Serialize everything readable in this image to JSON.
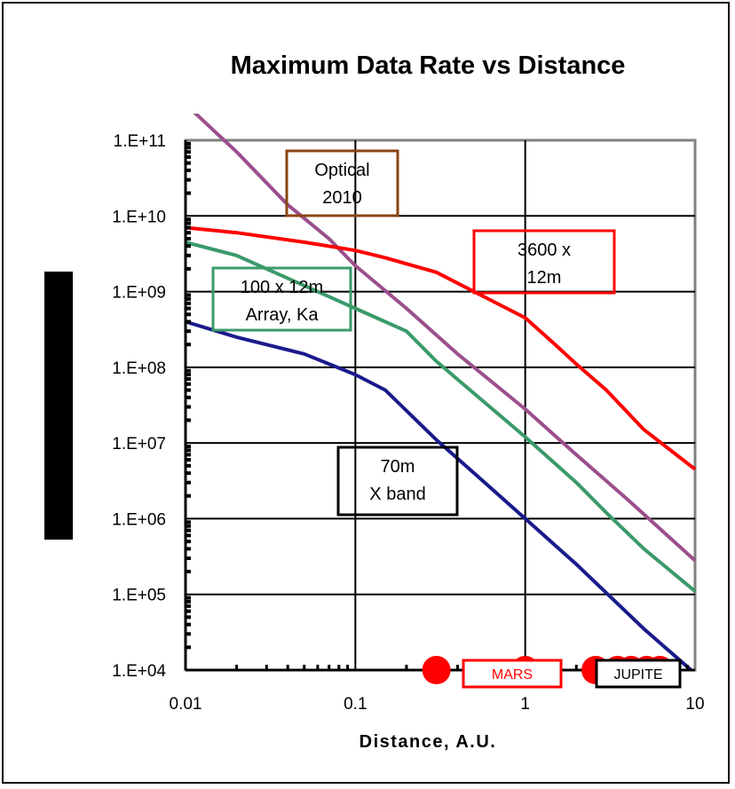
{
  "chart_data": {
    "type": "line",
    "title": "Maximum Data Rate vs Distance",
    "xlabel": "Distance, A.U.",
    "ylabel": "",
    "x_scale": "log",
    "y_scale": "log",
    "xlim": [
      0.01,
      10
    ],
    "ylim": [
      10000,
      100000000000
    ],
    "grid": true,
    "x_ticks": [
      "0.01",
      "0.1",
      "1",
      "10"
    ],
    "y_ticks": [
      "1.E+04",
      "1.E+05",
      "1.E+06",
      "1.E+07",
      "1.E+08",
      "1.E+09",
      "1.E+10",
      "1.E+11"
    ],
    "colors": {
      "optical": "#9b4f8c",
      "array_3600": "#ff0000",
      "array_100": "#3a9a6a",
      "dsn_70m": "#1a1a8c",
      "grid": "#000000",
      "plot_border": "#808080",
      "planet_marker": "#ff0000"
    },
    "series": [
      {
        "key": "optical",
        "x": [
          0.01,
          0.02,
          0.04,
          0.07,
          0.1,
          0.2,
          0.4,
          1,
          2,
          4,
          10
        ],
        "y": [
          300000000000,
          70000000000,
          14000000000,
          5000000000,
          2200000000,
          600000000,
          150000000,
          28000000,
          7000000,
          1800000,
          280000
        ]
      },
      {
        "key": "array_3600",
        "x": [
          0.01,
          0.02,
          0.05,
          0.1,
          0.15,
          0.3,
          0.5,
          1,
          1.5,
          2,
          3,
          5,
          10
        ],
        "y": [
          7000000000,
          6000000000,
          4500000000,
          3500000000,
          2800000000,
          1800000000,
          1000000000,
          450000000,
          200000000,
          110000000,
          50000000,
          15000000,
          4500000
        ]
      },
      {
        "key": "array_100",
        "x": [
          0.01,
          0.02,
          0.03,
          0.05,
          0.1,
          0.2,
          0.3,
          1,
          2,
          3,
          5,
          10
        ],
        "y": [
          4500000000,
          3000000000,
          2000000000,
          1200000000,
          600000000,
          300000000,
          120000000,
          12000000,
          3000000,
          1200000,
          400000,
          110000
        ]
      },
      {
        "key": "dsn_70m",
        "x": [
          0.01,
          0.02,
          0.05,
          0.1,
          0.15,
          0.3,
          0.5,
          1,
          2,
          5,
          10
        ],
        "y": [
          400000000,
          250000000,
          150000000,
          80000000,
          50000000,
          11000000,
          4000000,
          1000000,
          250000,
          35000,
          9000
        ]
      }
    ],
    "annotations": [
      {
        "key": "optical",
        "lines": [
          "Optical",
          "2010"
        ]
      },
      {
        "key": "array_3600",
        "lines": [
          "3600 x",
          "12m"
        ]
      },
      {
        "key": "array_100",
        "lines": [
          "100 x 12m",
          "Array, Ka"
        ]
      },
      {
        "key": "dsn_70m",
        "lines": [
          "70m",
          "X band"
        ]
      }
    ],
    "planet_markers": [
      {
        "x": 0.3
      },
      {
        "x": 1
      },
      {
        "x": 2.6
      },
      {
        "x": 3.5
      },
      {
        "x": 4.2
      },
      {
        "x": 5.2
      },
      {
        "x": 6.2
      }
    ],
    "planet_labels": [
      {
        "text": "MARS",
        "color": "#ff0000"
      },
      {
        "text": "JUPITE",
        "color": "#000000"
      }
    ]
  }
}
